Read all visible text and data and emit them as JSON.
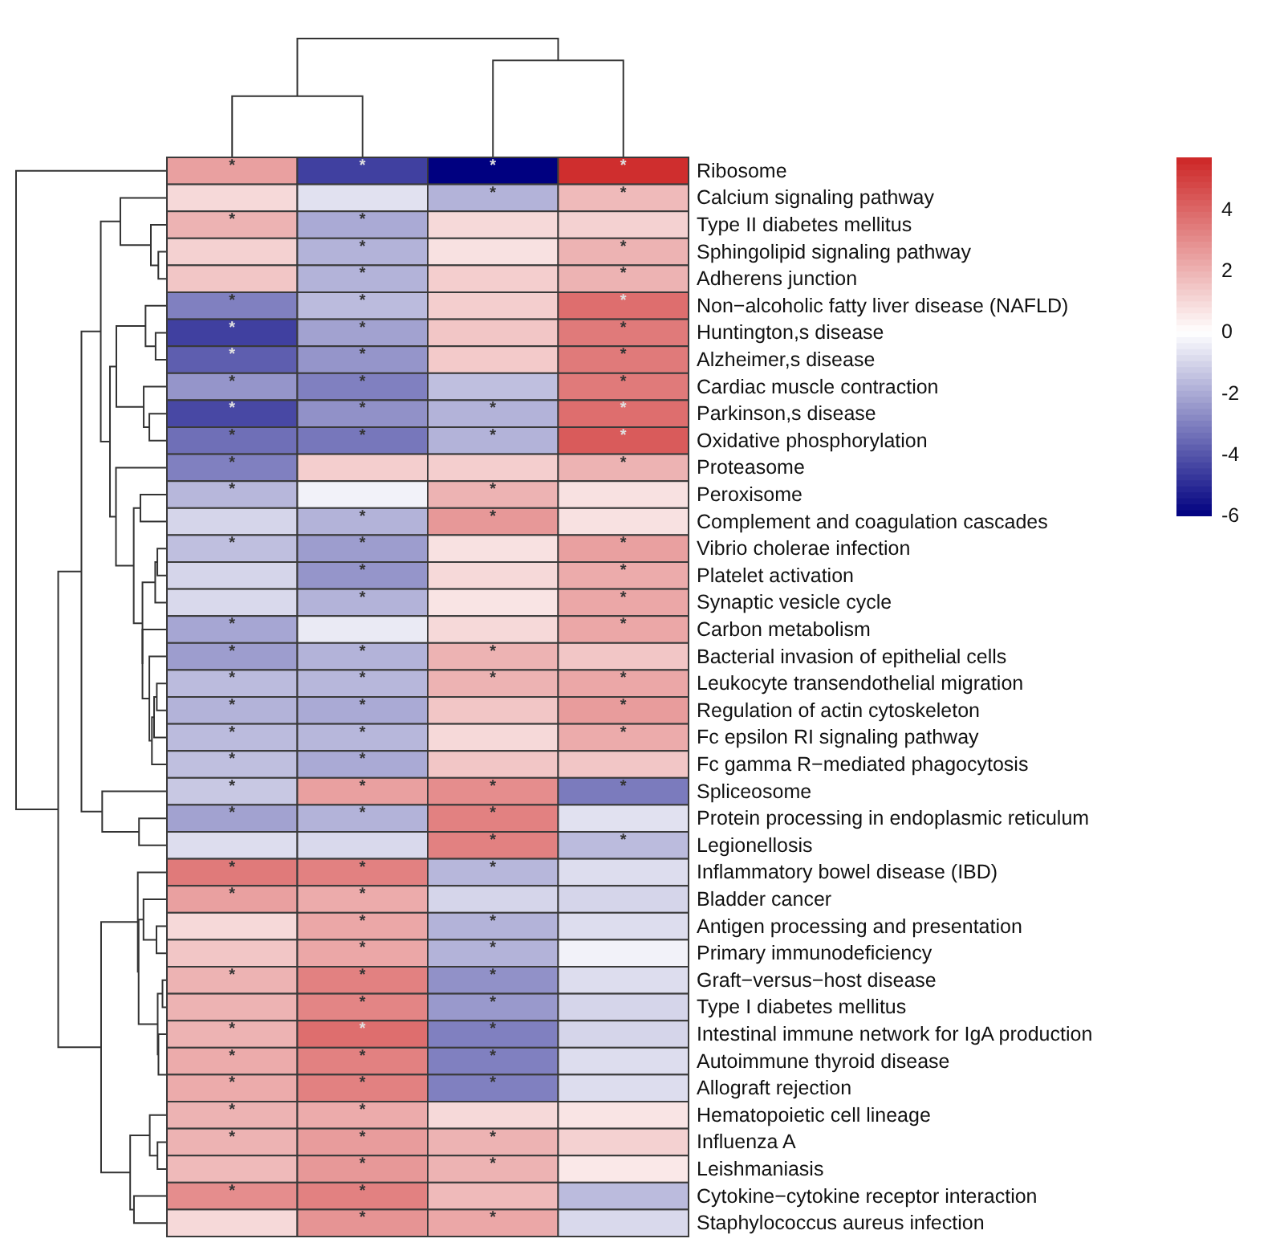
{
  "chart_data": {
    "type": "heatmap",
    "categories": [
      null,
      null,
      null,
      null
    ],
    "y_categories": [
      "Ribosome",
      "Calcium signaling pathway",
      "Type II diabetes mellitus",
      "Sphingolipid signaling pathway",
      "Adherens junction",
      "Non−alcoholic fatty liver disease (NAFLD)",
      "Huntington,s disease",
      "Alzheimer,s disease",
      "Cardiac muscle contraction",
      "Parkinson,s disease",
      "Oxidative phosphorylation",
      "Proteasome",
      "Peroxisome",
      "Complement and coagulation cascades",
      "Vibrio cholerae infection",
      "Platelet activation",
      "Synaptic vesicle cycle",
      "Carbon metabolism",
      "Bacterial invasion of epithelial cells",
      "Leukocyte transendothelial migration",
      "Regulation of actin cytoskeleton",
      "Fc epsilon RI signaling pathway",
      "Fc gamma R−mediated phagocytosis",
      "Spliceosome",
      "Protein processing in endoplasmic reticulum",
      "Legionellosis",
      "Inflammatory bowel disease (IBD)",
      "Bladder cancer",
      "Antigen processing and presentation",
      "Primary immunodeficiency",
      "Graft−versus−host disease",
      "Type I diabetes mellitus",
      "Intestinal immune network for IgA production",
      "Autoimmune thyroid disease",
      "Allograft rejection",
      "Hematopoietic cell lineage",
      "Influenza A",
      "Leishmaniasis",
      "Cytokine−cytokine receptor interaction",
      "Staphylococcus aureus infection"
    ],
    "cells": [
      [
        2.5,
        -4.5,
        -6,
        5.5
      ],
      [
        1,
        -0.7,
        -1.8,
        1.8
      ],
      [
        2,
        -2,
        1,
        1.2
      ],
      [
        1.2,
        -1.8,
        0.8,
        2
      ],
      [
        1.5,
        -1.8,
        1.3,
        2
      ],
      [
        -3,
        -1.6,
        1.3,
        3.8
      ],
      [
        -4.5,
        -2.2,
        1.5,
        3.5
      ],
      [
        -3.8,
        -2.5,
        1.4,
        3.5
      ],
      [
        -2.5,
        -3,
        -1.5,
        3.5
      ],
      [
        -4.3,
        -2.6,
        -1.8,
        3.8
      ],
      [
        -3.4,
        -3.2,
        -1.8,
        4.3
      ],
      [
        -3,
        1.3,
        1.3,
        2
      ],
      [
        -1.7,
        -0.3,
        2,
        0.8
      ],
      [
        -1,
        -1.8,
        2.7,
        0.8
      ],
      [
        -1.5,
        -2.3,
        0.8,
        2.5
      ],
      [
        -1,
        -2.5,
        1,
        2.2
      ],
      [
        -0.9,
        -1.8,
        0.7,
        2.3
      ],
      [
        -2.1,
        -0.5,
        1,
        2.3
      ],
      [
        -2.3,
        -1.8,
        2,
        1.5
      ],
      [
        -1.6,
        -1.7,
        2,
        2.3
      ],
      [
        -1.8,
        -2,
        1.5,
        2.6
      ],
      [
        -1.6,
        -1.7,
        1,
        2.2
      ],
      [
        -1.5,
        -2,
        1.5,
        1.5
      ],
      [
        -1.3,
        2.5,
        3,
        -3.1
      ],
      [
        -2.2,
        -1.8,
        3.3,
        -0.7
      ],
      [
        -0.8,
        -0.9,
        3.3,
        -1.6
      ],
      [
        3.5,
        3.3,
        -1.7,
        -0.8
      ],
      [
        2.5,
        2.2,
        -1,
        -1
      ],
      [
        1,
        2.3,
        -1.8,
        -0.8
      ],
      [
        1.5,
        2.3,
        -1.8,
        -0.3
      ],
      [
        2,
        3.3,
        -2.6,
        -0.8
      ],
      [
        2,
        3.2,
        -2.4,
        -1
      ],
      [
        2,
        3.8,
        -3,
        -1
      ],
      [
        2.2,
        3.3,
        -3,
        -0.8
      ],
      [
        2.2,
        3.3,
        -3,
        -0.8
      ],
      [
        2,
        2.2,
        1,
        0.7
      ],
      [
        2,
        2.6,
        2,
        1.2
      ],
      [
        1.8,
        2.7,
        2,
        0.6
      ],
      [
        3,
        3.3,
        1.8,
        -1.6
      ],
      [
        1,
        2.8,
        2.3,
        -0.9
      ]
    ],
    "cell_labels": [
      [
        "*",
        "*",
        "*",
        "*"
      ],
      [
        null,
        null,
        "*",
        "*"
      ],
      [
        "*",
        "*",
        null,
        null
      ],
      [
        null,
        "*",
        null,
        "*"
      ],
      [
        null,
        "*",
        null,
        "*"
      ],
      [
        "*",
        "*",
        null,
        "*"
      ],
      [
        "*",
        "*",
        null,
        "*"
      ],
      [
        "*",
        "*",
        null,
        "*"
      ],
      [
        "*",
        "*",
        null,
        "*"
      ],
      [
        "*",
        "*",
        "*",
        "*"
      ],
      [
        "*",
        "*",
        "*",
        "*"
      ],
      [
        "*",
        null,
        null,
        "*"
      ],
      [
        "*",
        null,
        "*",
        null
      ],
      [
        null,
        "*",
        "*",
        null
      ],
      [
        "*",
        "*",
        null,
        "*"
      ],
      [
        null,
        "*",
        null,
        "*"
      ],
      [
        null,
        "*",
        null,
        "*"
      ],
      [
        "*",
        null,
        null,
        "*"
      ],
      [
        "*",
        "*",
        "*",
        null
      ],
      [
        "*",
        "*",
        "*",
        "*"
      ],
      [
        "*",
        "*",
        null,
        "*"
      ],
      [
        "*",
        "*",
        null,
        "*"
      ],
      [
        "*",
        "*",
        null,
        null
      ],
      [
        "*",
        "*",
        "*",
        "*"
      ],
      [
        "*",
        "*",
        "*",
        null
      ],
      [
        null,
        null,
        "*",
        "*"
      ],
      [
        "*",
        "*",
        "*",
        null
      ],
      [
        "*",
        "*",
        null,
        null
      ],
      [
        null,
        "*",
        "*",
        null
      ],
      [
        null,
        "*",
        "*",
        null
      ],
      [
        "*",
        "*",
        "*",
        null
      ],
      [
        null,
        "*",
        "*",
        null
      ],
      [
        "*",
        "*",
        "*",
        null
      ],
      [
        "*",
        "*",
        "*",
        null
      ],
      [
        "*",
        "*",
        "*",
        null
      ],
      [
        "*",
        "*",
        null,
        null
      ],
      [
        "*",
        "*",
        "*",
        null
      ],
      [
        null,
        "*",
        "*",
        null
      ],
      [
        "*",
        "*",
        null,
        null
      ],
      [
        null,
        "*",
        "*",
        null
      ]
    ],
    "clim": [
      -6,
      5.7
    ],
    "cticks": [
      -6,
      -4,
      -2,
      0,
      2,
      4
    ]
  }
}
